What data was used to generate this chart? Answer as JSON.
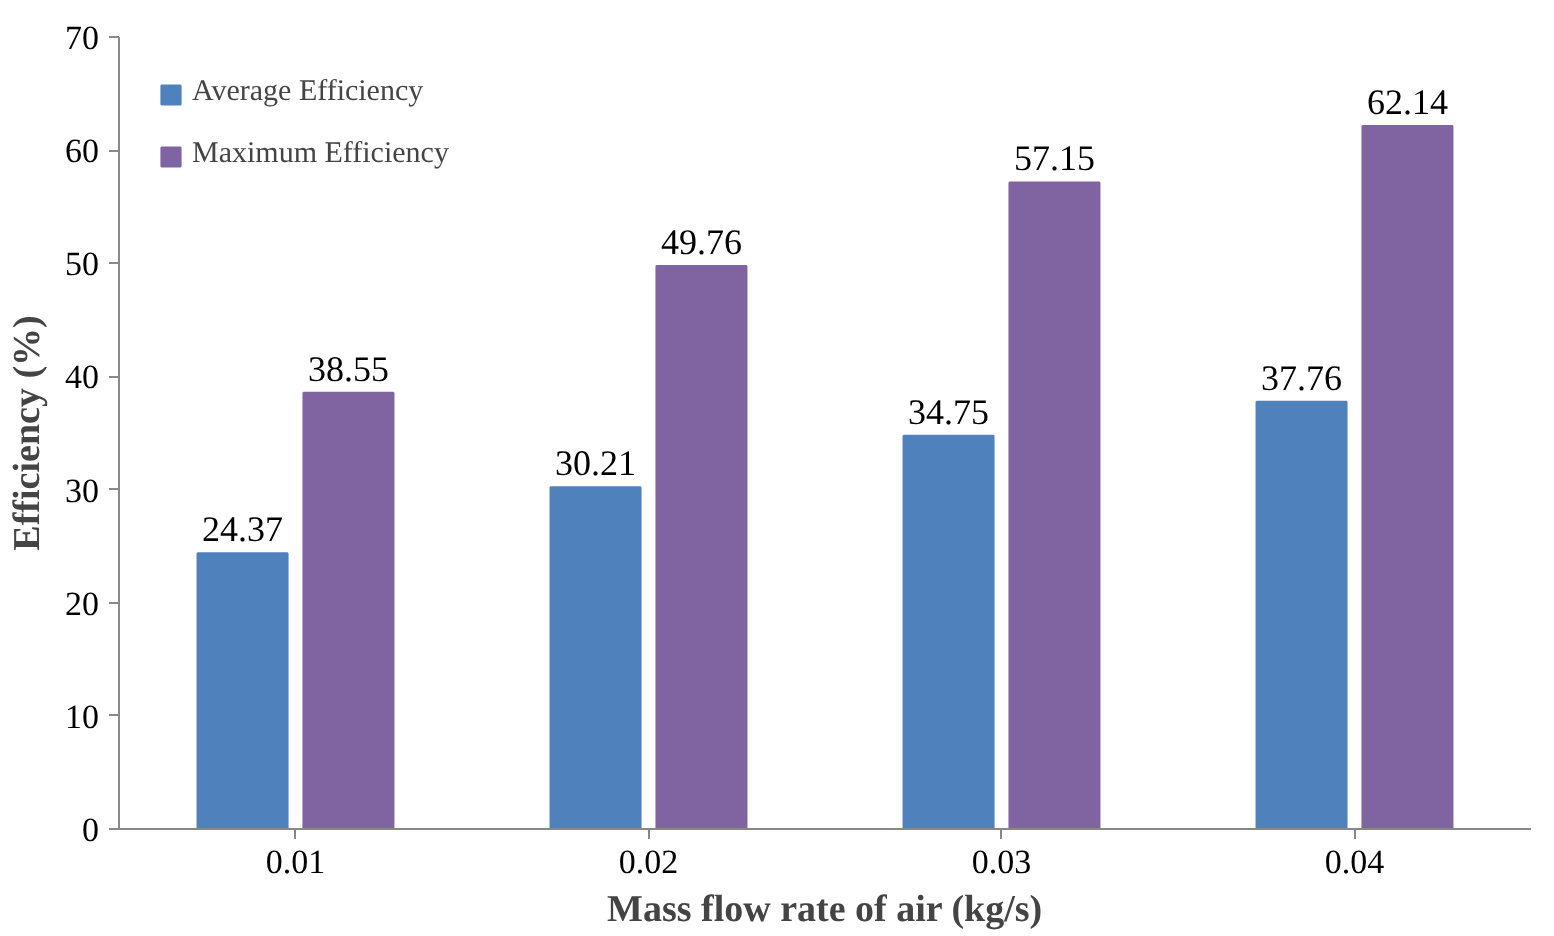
{
  "chart_data": {
    "type": "bar",
    "xlabel": "Mass flow rate of air (kg/s)",
    "ylabel": "Efficiency (%)",
    "categories": [
      "0.01",
      "0.02",
      "0.03",
      "0.04"
    ],
    "series": [
      {
        "name": "Average Efficiency",
        "color": "#4f81bd",
        "values": [
          24.37,
          30.21,
          34.75,
          37.76
        ]
      },
      {
        "name": "Maximum Efficiency",
        "color": "#8064a2",
        "values": [
          38.55,
          49.76,
          57.15,
          62.14
        ]
      }
    ],
    "ylim": [
      0,
      70
    ],
    "yticks": [
      0,
      10,
      20,
      30,
      40,
      50,
      60,
      70
    ],
    "grid": false,
    "legend": "top left",
    "data_labels": true
  }
}
